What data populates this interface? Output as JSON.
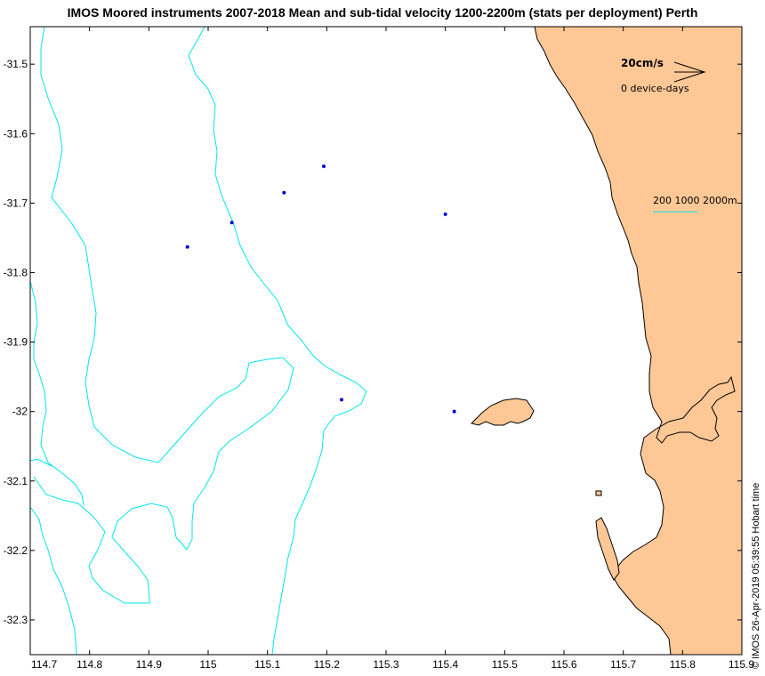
{
  "title": "IMOS Moored instruments 2007-2018 Mean and sub-tidal velocity 1200-2200m (stats per deployment) Perth",
  "timestamp": "© IMOS 26-Apr-2019 05:39:55 Hobart time",
  "legend": {
    "scale_label": "20cm/s",
    "count_label": "0 device-days",
    "isobath_label": "200 1000 2000m"
  },
  "axes": {
    "x_ticks": [
      "114.7",
      "114.8",
      "114.9",
      "115",
      "115.1",
      "115.2",
      "115.3",
      "115.4",
      "115.5",
      "115.6",
      "115.7",
      "115.8",
      "115.9"
    ],
    "y_ticks": [
      "-31.5",
      "-31.6",
      "-31.7",
      "-31.8",
      "-31.9",
      "-32",
      "-32.1",
      "-32.2",
      "-32.3"
    ]
  },
  "colors": {
    "land": "#fdc895",
    "isobath": "#00e5ee",
    "station": "#0000cc",
    "frame": "#000000"
  },
  "stations": [
    {
      "lon": 115.195,
      "lat": -31.647
    },
    {
      "lon": 115.128,
      "lat": -31.685
    },
    {
      "lon": 115.04,
      "lat": -31.728
    },
    {
      "lon": 114.965,
      "lat": -31.763
    },
    {
      "lon": 115.4,
      "lat": -31.716
    },
    {
      "lon": 115.225,
      "lat": -31.983
    },
    {
      "lon": 115.415,
      "lat": -32.0
    }
  ]
}
